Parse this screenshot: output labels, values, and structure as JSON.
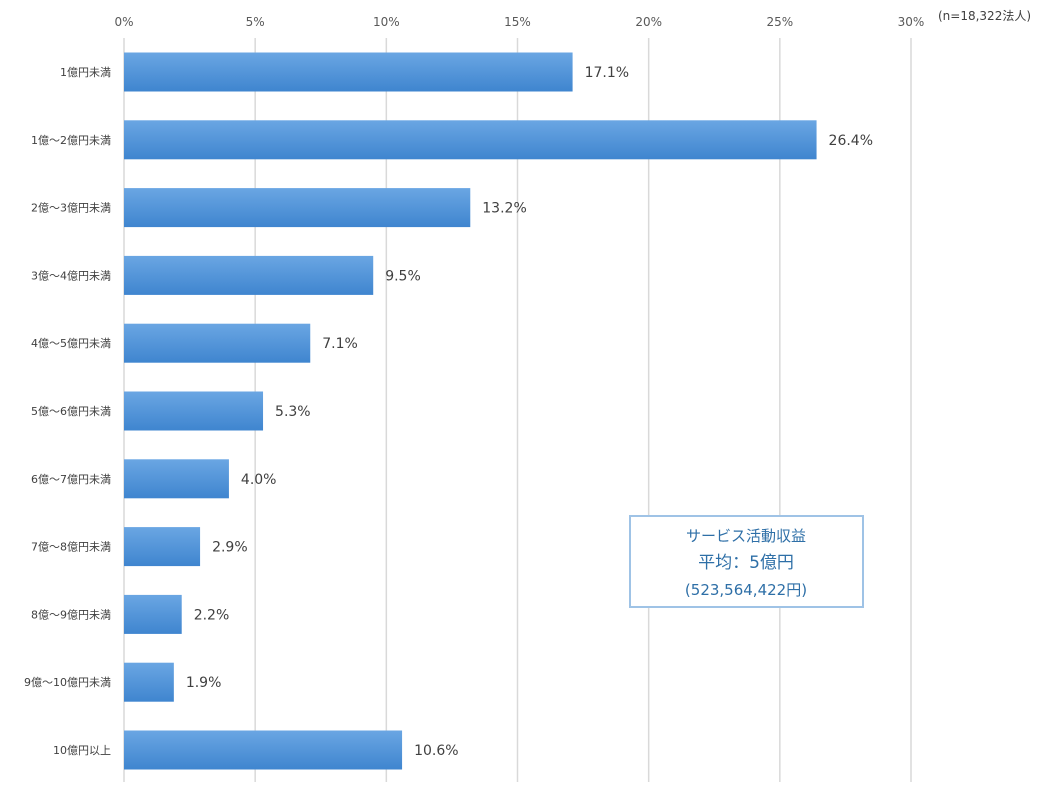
{
  "chart_data": {
    "type": "bar",
    "orientation": "horizontal",
    "categories": [
      "1億円未満",
      "1億～2億円未満",
      "2億～3億円未満",
      "3億～4億円未満",
      "4億～5億円未満",
      "5億～6億円未満",
      "6億～7億円未満",
      "7億～8億円未満",
      "8億～9億円未満",
      "9億～10億円未満",
      "10億円以上"
    ],
    "values": [
      17.1,
      26.4,
      13.2,
      9.5,
      7.1,
      5.3,
      4.0,
      2.9,
      2.2,
      1.9,
      10.6
    ],
    "data_labels": [
      "17.1%",
      "26.4%",
      "13.2%",
      "9.5%",
      "7.1%",
      "5.3%",
      "4.0%",
      "2.9%",
      "2.2%",
      "1.9%",
      "10.6%"
    ],
    "xlim": [
      0,
      30
    ],
    "xticks": [
      0,
      5,
      10,
      15,
      20,
      25,
      30
    ],
    "xtick_labels": [
      "0%",
      "5%",
      "10%",
      "15%",
      "20%",
      "25%",
      "30%"
    ],
    "x_axis_position": "top",
    "grid": true,
    "bar_color": "#4a8fd6",
    "sample_note": "(n=18,322法人)",
    "annotation": {
      "line1": "サービス活動収益",
      "line2": "平均：5億円",
      "line3": "(523,564,422円)"
    }
  }
}
